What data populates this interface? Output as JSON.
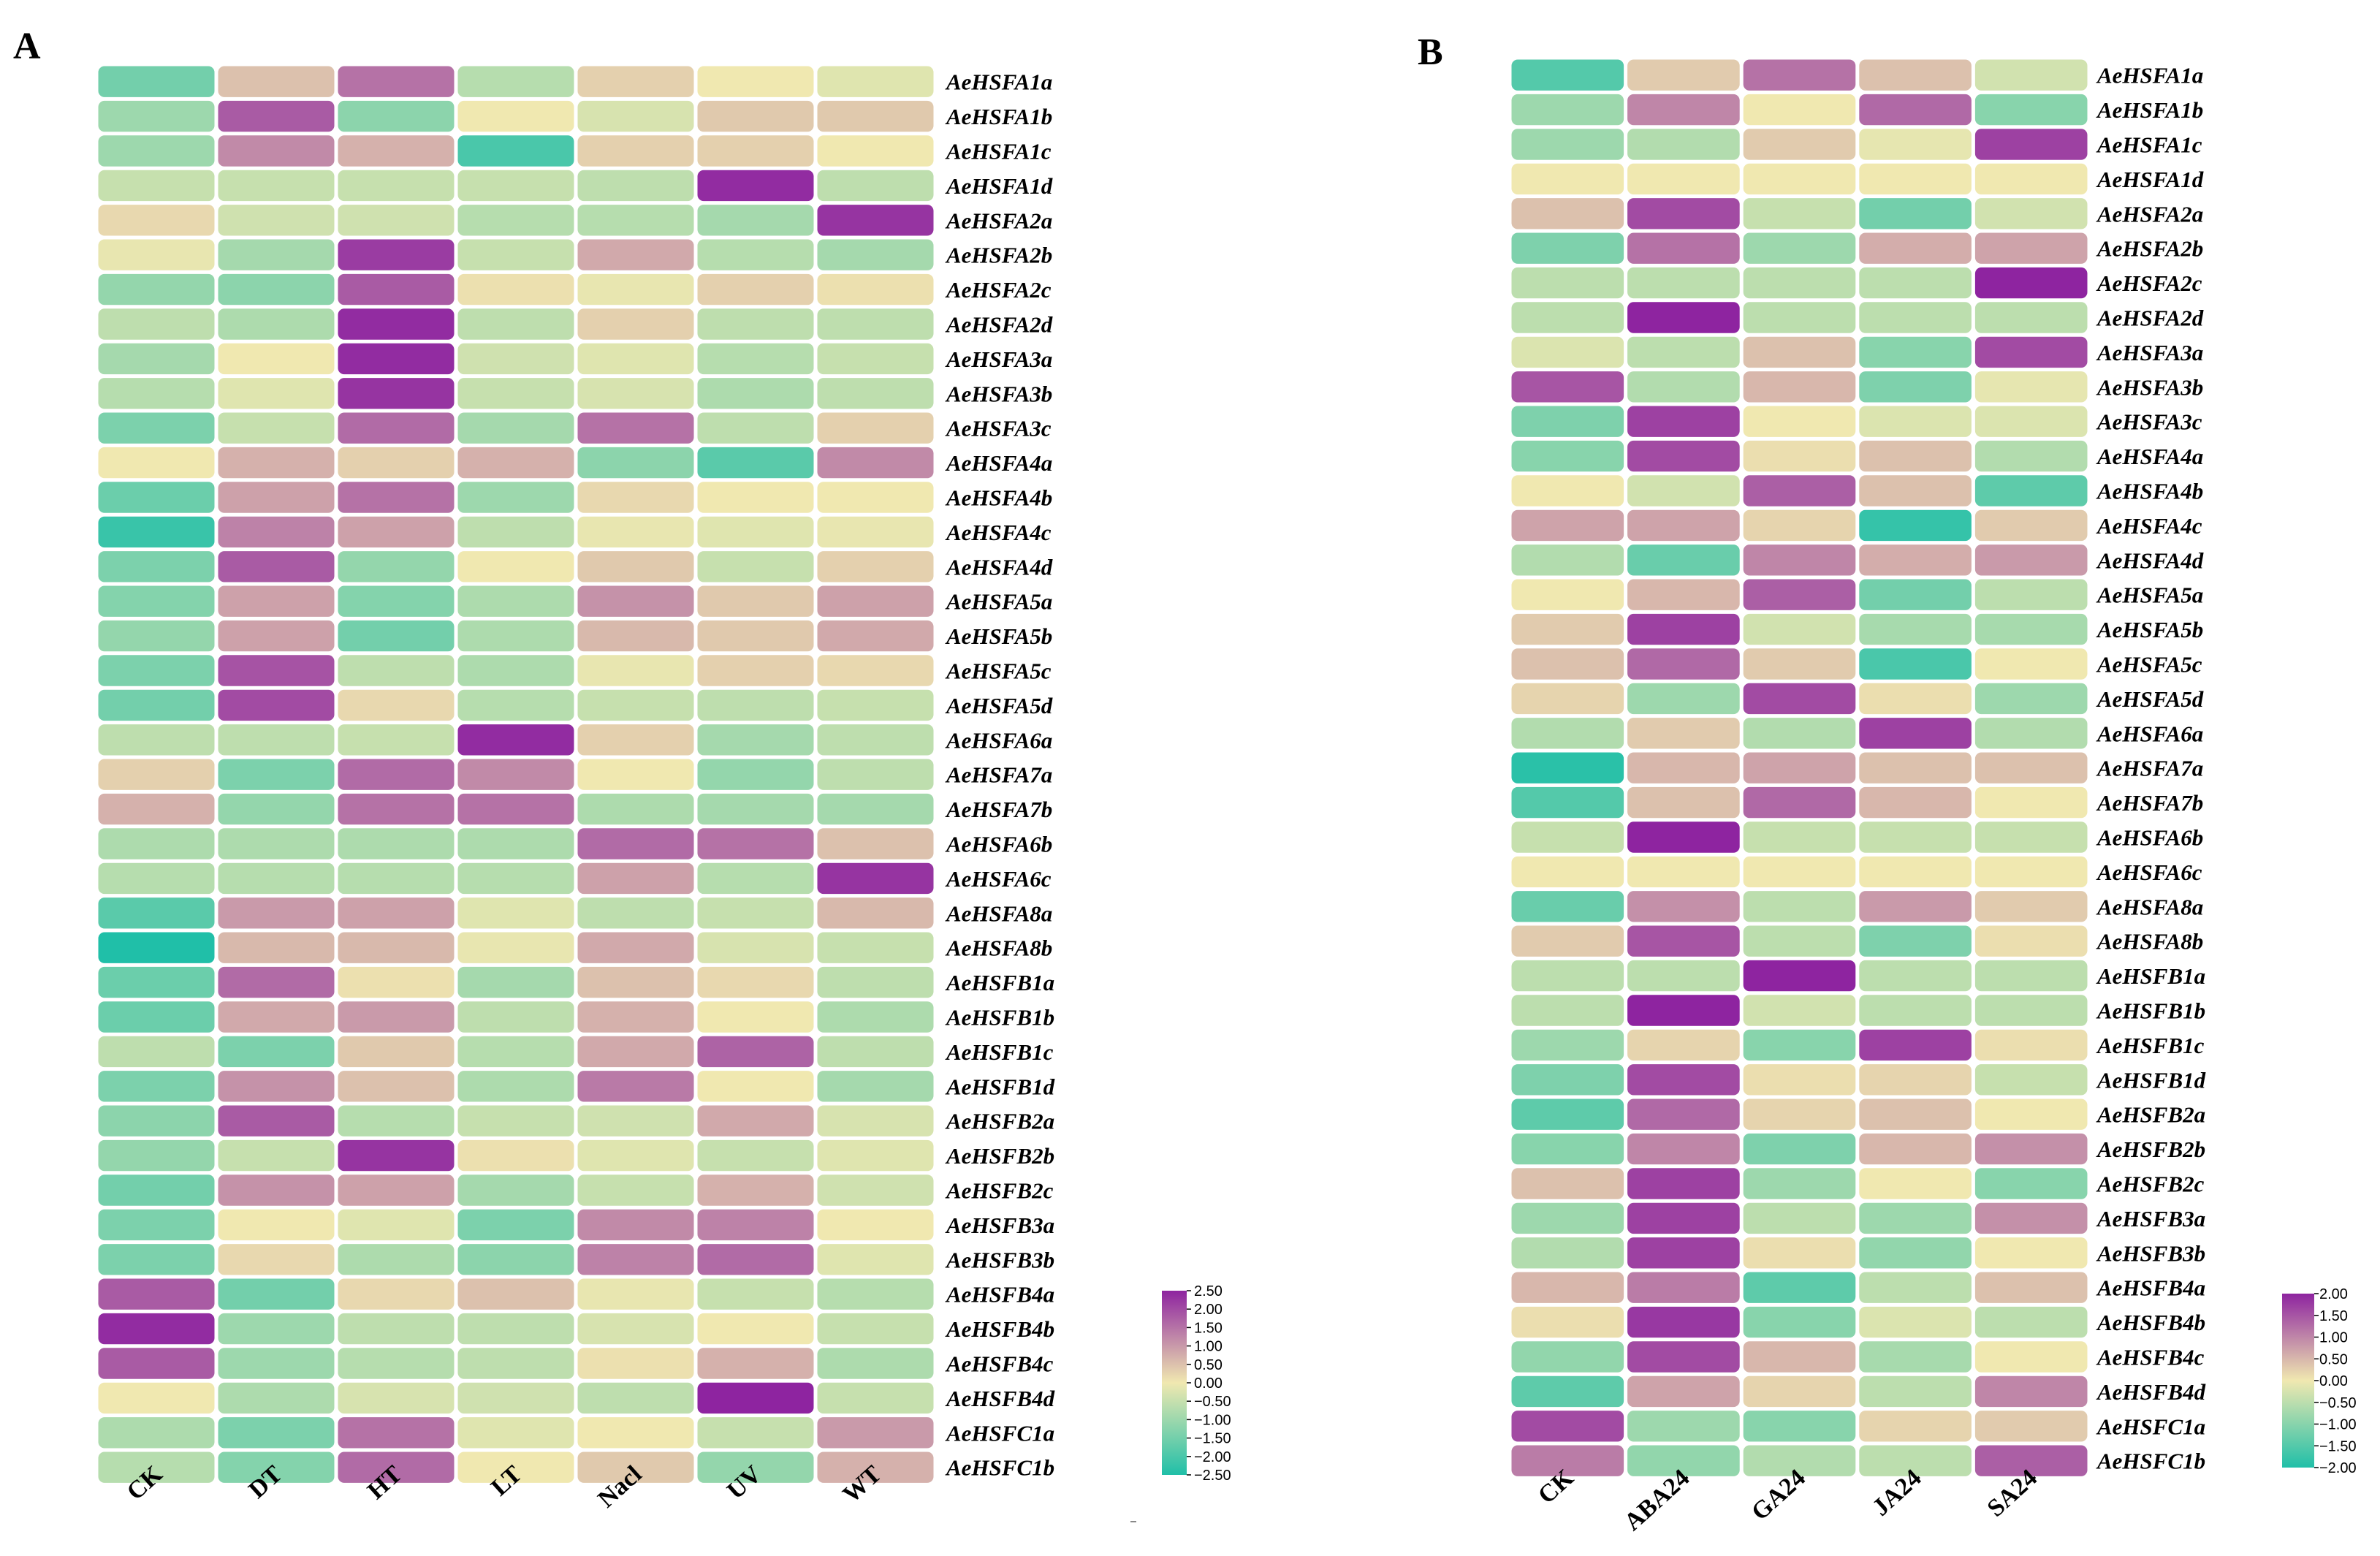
{
  "colors": {
    "low": "#20bfa8",
    "mid": "#f0e8b0",
    "high": "#8e24a0",
    "cell_border": "#ffffff",
    "background": "#ffffff"
  },
  "chart_data": [
    {
      "type": "heatmap",
      "panel": "A",
      "columns": [
        "CK",
        "DT",
        "HT",
        "LT",
        "Nacl",
        "UV",
        "WT"
      ],
      "rows": [
        "AeHSFA1a",
        "AeHSFA1b",
        "AeHSFA1c",
        "AeHSFA1d",
        "AeHSFA2a",
        "AeHSFA2b",
        "AeHSFA2c",
        "AeHSFA2d",
        "AeHSFA3a",
        "AeHSFA3b",
        "AeHSFA3c",
        "AeHSFA4a",
        "AeHSFA4b",
        "AeHSFA4c",
        "AeHSFA4d",
        "AeHSFA5a",
        "AeHSFA5b",
        "AeHSFA5c",
        "AeHSFA5d",
        "AeHSFA6a",
        "AeHSFA7a",
        "AeHSFA7b",
        "AeHSFA6b",
        "AeHSFA6c",
        "AeHSFA8a",
        "AeHSFA8b",
        "AeHSFB1a",
        "AeHSFB1b",
        "AeHSFB1c",
        "AeHSFB1d",
        "AeHSFB2a",
        "AeHSFB2b",
        "AeHSFB2c",
        "AeHSFB3a",
        "AeHSFB3b",
        "AeHSFB4a",
        "AeHSFB4b",
        "AeHSFB4c",
        "AeHSFB4d",
        "AeHSFC1a",
        "AeHSFC1b"
      ],
      "values": [
        [
          -1.5,
          0.5,
          1.5,
          -0.7,
          0.3,
          0.0,
          -0.2
        ],
        [
          -1.0,
          1.8,
          -1.2,
          0.0,
          -0.3,
          0.4,
          0.4
        ],
        [
          -1.0,
          1.2,
          0.7,
          -2.0,
          0.3,
          0.3,
          0.0
        ],
        [
          -0.5,
          -0.5,
          -0.5,
          -0.5,
          -0.6,
          2.4,
          -0.6
        ],
        [
          0.2,
          -0.4,
          -0.4,
          -0.7,
          -0.7,
          -0.9,
          2.3
        ],
        [
          -0.1,
          -0.9,
          2.2,
          -0.5,
          0.8,
          -0.7,
          -0.9
        ],
        [
          -1.1,
          -1.2,
          1.8,
          0.1,
          -0.1,
          0.3,
          0.1
        ],
        [
          -0.6,
          -0.8,
          2.4,
          -0.6,
          0.3,
          -0.6,
          -0.6
        ],
        [
          -0.9,
          0.0,
          2.4,
          -0.4,
          -0.2,
          -0.7,
          -0.5
        ],
        [
          -0.7,
          -0.2,
          2.3,
          -0.5,
          -0.3,
          -0.8,
          -0.6
        ],
        [
          -1.4,
          -0.5,
          1.6,
          -0.9,
          1.5,
          -0.6,
          0.3
        ],
        [
          0.0,
          0.7,
          0.3,
          0.7,
          -1.2,
          -1.8,
          1.2
        ],
        [
          -1.6,
          0.9,
          1.5,
          -1.0,
          0.2,
          0.0,
          0.0
        ],
        [
          -2.2,
          1.3,
          0.9,
          -0.6,
          -0.1,
          -0.2,
          -0.1
        ],
        [
          -1.4,
          1.8,
          -1.1,
          0.0,
          0.4,
          -0.5,
          0.3
        ],
        [
          -1.3,
          0.9,
          -1.3,
          -0.8,
          1.1,
          0.4,
          0.9
        ],
        [
          -1.1,
          0.9,
          -1.5,
          -0.8,
          0.6,
          0.4,
          0.8
        ],
        [
          -1.4,
          1.9,
          -0.6,
          -0.8,
          -0.1,
          0.3,
          0.2
        ],
        [
          -1.5,
          2.0,
          0.2,
          -0.7,
          -0.5,
          -0.6,
          -0.5
        ],
        [
          -0.6,
          -0.6,
          -0.5,
          2.4,
          0.3,
          -0.9,
          -0.6
        ],
        [
          0.3,
          -1.4,
          1.6,
          1.2,
          0.0,
          -1.1,
          -0.6
        ],
        [
          0.7,
          -1.1,
          1.5,
          1.5,
          -0.8,
          -0.9,
          -0.9
        ],
        [
          -0.8,
          -0.8,
          -0.8,
          -0.8,
          1.6,
          1.5,
          0.5
        ],
        [
          -0.7,
          -0.7,
          -0.7,
          -0.7,
          0.9,
          -0.7,
          2.3
        ],
        [
          -1.8,
          1.0,
          0.9,
          -0.2,
          -0.6,
          -0.5,
          0.6
        ],
        [
          -2.5,
          0.6,
          0.6,
          -0.1,
          0.8,
          -0.3,
          -0.5
        ],
        [
          -1.6,
          1.6,
          0.1,
          -0.9,
          0.5,
          0.2,
          -0.6
        ],
        [
          -1.6,
          0.8,
          1.0,
          -0.6,
          0.7,
          0.0,
          -0.8
        ],
        [
          -0.6,
          -1.4,
          0.4,
          -0.7,
          0.8,
          1.7,
          -0.6
        ],
        [
          -1.4,
          1.1,
          0.5,
          -0.8,
          1.4,
          0.0,
          -0.9
        ],
        [
          -1.2,
          1.8,
          -0.7,
          -0.5,
          -0.4,
          0.8,
          -0.3
        ],
        [
          -1.1,
          -0.5,
          2.3,
          0.1,
          -0.2,
          -0.5,
          -0.2
        ],
        [
          -1.5,
          1.1,
          0.9,
          -0.9,
          -0.5,
          0.7,
          -0.4
        ],
        [
          -1.4,
          0.0,
          -0.2,
          -1.4,
          1.2,
          1.3,
          0.0
        ],
        [
          -1.4,
          0.2,
          -0.8,
          -1.2,
          1.3,
          1.6,
          -0.2
        ],
        [
          1.8,
          -1.5,
          0.2,
          0.5,
          -0.1,
          -0.5,
          -0.7
        ],
        [
          2.4,
          -1.0,
          -0.6,
          -0.6,
          -0.3,
          0.0,
          -0.5
        ],
        [
          1.8,
          -1.0,
          -0.7,
          -0.6,
          0.1,
          0.7,
          -0.8
        ],
        [
          0.0,
          -0.8,
          -0.3,
          -0.4,
          -0.6,
          2.5,
          -0.5
        ],
        [
          -0.8,
          -1.4,
          1.5,
          -0.2,
          0.0,
          -0.5,
          1.0
        ],
        [
          -0.7,
          -1.3,
          1.6,
          0.0,
          0.4,
          -1.1,
          0.7
        ]
      ],
      "colorbar": {
        "min": -2.5,
        "max": 2.5,
        "ticks": [
          "2.50",
          "2.00",
          "1.50",
          "1.00",
          "0.50",
          "0.00",
          "−0.50",
          "−1.00",
          "−1.50",
          "−2.00",
          "−2.50"
        ]
      }
    },
    {
      "type": "heatmap",
      "panel": "B",
      "columns": [
        "CK",
        "ABA24",
        "GA24",
        "JA24",
        "SA24"
      ],
      "rows": [
        "AeHSFA1a",
        "AeHSFA1b",
        "AeHSFA1c",
        "AeHSFA1d",
        "AeHSFA2a",
        "AeHSFA2b",
        "AeHSFA2c",
        "AeHSFA2d",
        "AeHSFA3a",
        "AeHSFA3b",
        "AeHSFA3c",
        "AeHSFA4a",
        "AeHSFA4b",
        "AeHSFA4c",
        "AeHSFA4d",
        "AeHSFA5a",
        "AeHSFA5b",
        "AeHSFA5c",
        "AeHSFA5d",
        "AeHSFA6a",
        "AeHSFA7a",
        "AeHSFA7b",
        "AeHSFA6b",
        "AeHSFA6c",
        "AeHSFA8a",
        "AeHSFA8b",
        "AeHSFB1a",
        "AeHSFB1b",
        "AeHSFB1c",
        "AeHSFB1d",
        "AeHSFB2a",
        "AeHSFB2b",
        "AeHSFB2c",
        "AeHSFB3a",
        "AeHSFB3b",
        "AeHSFB4a",
        "AeHSFB4b",
        "AeHSFB4c",
        "AeHSFB4d",
        "AeHSFC1a",
        "AeHSFC1b"
      ],
      "values": [
        [
          -1.5,
          0.3,
          1.2,
          0.4,
          -0.3
        ],
        [
          -0.8,
          1.0,
          0.0,
          1.3,
          -1.0
        ],
        [
          -0.8,
          -0.6,
          0.3,
          -0.1,
          1.7
        ],
        [
          0.0,
          0.0,
          0.0,
          0.0,
          0.0
        ],
        [
          0.4,
          1.6,
          -0.4,
          -1.2,
          -0.3
        ],
        [
          -1.1,
          1.2,
          -0.8,
          0.6,
          0.7
        ],
        [
          -0.5,
          -0.5,
          -0.5,
          -0.5,
          2.0
        ],
        [
          -0.5,
          2.0,
          -0.5,
          -0.5,
          -0.5
        ],
        [
          -0.2,
          -0.5,
          0.4,
          -1.0,
          1.6
        ],
        [
          1.5,
          -0.6,
          0.5,
          -1.1,
          -0.1
        ],
        [
          -1.1,
          1.7,
          0.0,
          -0.2,
          -0.2
        ],
        [
          -1.0,
          1.6,
          0.1,
          0.4,
          -0.6
        ],
        [
          0.0,
          -0.3,
          1.4,
          0.4,
          -1.4
        ],
        [
          0.7,
          0.7,
          0.2,
          -1.8,
          0.3
        ],
        [
          -0.6,
          -1.3,
          1.0,
          0.6,
          0.8
        ],
        [
          0.0,
          0.5,
          1.4,
          -1.2,
          -0.5
        ],
        [
          0.3,
          1.7,
          -0.3,
          -0.7,
          -0.7
        ],
        [
          0.4,
          1.3,
          0.3,
          -1.6,
          0.0
        ],
        [
          0.2,
          -0.8,
          1.6,
          0.1,
          -0.8
        ],
        [
          -0.6,
          0.3,
          -0.6,
          1.7,
          -0.6
        ],
        [
          -1.9,
          0.5,
          0.7,
          0.4,
          0.4
        ],
        [
          -1.5,
          0.4,
          1.3,
          0.5,
          0.0
        ],
        [
          -0.4,
          2.0,
          -0.4,
          -0.4,
          -0.4
        ],
        [
          0.0,
          0.0,
          0.0,
          0.0,
          0.0
        ],
        [
          -1.3,
          0.9,
          -0.5,
          0.8,
          0.3
        ],
        [
          0.3,
          1.5,
          -0.5,
          -1.1,
          0.1
        ],
        [
          -0.5,
          -0.5,
          2.0,
          -0.5,
          -0.5
        ],
        [
          -0.5,
          2.0,
          -0.3,
          -0.5,
          -0.5
        ],
        [
          -0.8,
          0.2,
          -1.0,
          1.7,
          0.1
        ],
        [
          -1.1,
          1.6,
          0.1,
          0.2,
          -0.4
        ],
        [
          -1.4,
          1.3,
          0.2,
          0.4,
          0.0
        ],
        [
          -1.0,
          1.0,
          -1.1,
          0.5,
          0.9
        ],
        [
          0.4,
          1.7,
          -0.8,
          0.0,
          -1.0
        ],
        [
          -0.8,
          1.7,
          -0.5,
          -0.8,
          0.9
        ],
        [
          -0.6,
          1.7,
          0.1,
          -0.9,
          0.0
        ],
        [
          0.5,
          1.1,
          -1.4,
          -0.5,
          0.4
        ],
        [
          0.1,
          1.8,
          -1.0,
          -0.2,
          -0.5
        ],
        [
          -0.9,
          1.6,
          0.5,
          -0.7,
          0.0
        ],
        [
          -1.4,
          0.7,
          0.2,
          -0.5,
          1.0
        ],
        [
          1.6,
          -0.8,
          -1.0,
          0.2,
          0.3
        ],
        [
          1.1,
          -0.9,
          -0.6,
          -0.5,
          1.4
        ]
      ],
      "colorbar": {
        "min": -2.0,
        "max": 2.0,
        "ticks": [
          "2.00",
          "1.50",
          "1.00",
          "0.50",
          "0.00",
          "−0.50",
          "−1.00",
          "−1.50",
          "−2.00"
        ]
      }
    }
  ]
}
